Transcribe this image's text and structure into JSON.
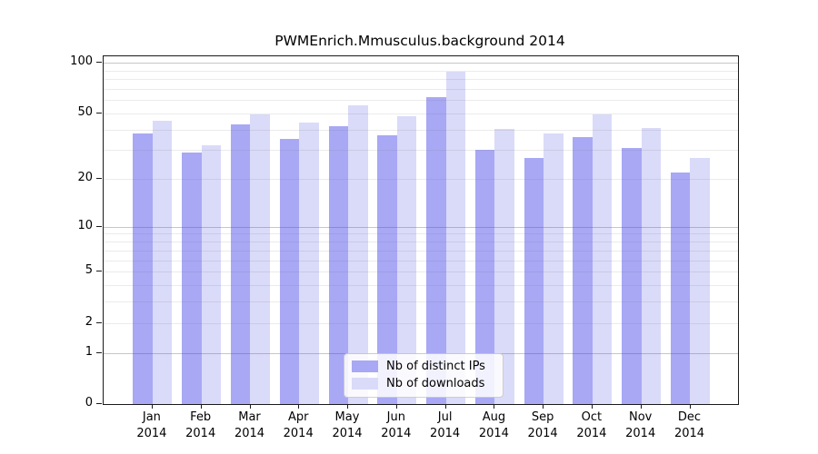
{
  "chart_data": {
    "type": "bar",
    "title": "PWMEnrich.Mmusculus.background 2014",
    "categories": [
      "Jan",
      "Feb",
      "Mar",
      "Apr",
      "May",
      "Jun",
      "Jul",
      "Aug",
      "Sep",
      "Oct",
      "Nov",
      "Dec"
    ],
    "category_year": "2014",
    "series": [
      {
        "name": "Nb of distinct IPs",
        "color": "#a8a8f5",
        "values": [
          38,
          29,
          43,
          35,
          42,
          37,
          62,
          30,
          27,
          36,
          31,
          22
        ]
      },
      {
        "name": "Nb of downloads",
        "color": "#dadaf9",
        "values": [
          45,
          32,
          49,
          44,
          56,
          48,
          88,
          40,
          38,
          49,
          41,
          27
        ]
      }
    ],
    "yscale": "log1p",
    "ylim": [
      0,
      110
    ],
    "yticks": [
      0,
      1,
      2,
      5,
      10,
      20,
      50,
      100
    ],
    "grid": true,
    "gridlines_major": [
      1,
      10,
      100
    ],
    "gridlines_minor": [
      2,
      3,
      4,
      5,
      6,
      7,
      8,
      9,
      20,
      30,
      40,
      50,
      60,
      70,
      80,
      90
    ],
    "legend_position": "inside-bottom-center",
    "xlabel": "",
    "ylabel": ""
  },
  "colors": {
    "background": "#ffffff",
    "axis": "#1a1a1a",
    "bar_distinct_ips": "#a8a8f5",
    "bar_downloads": "#dadaf9"
  }
}
